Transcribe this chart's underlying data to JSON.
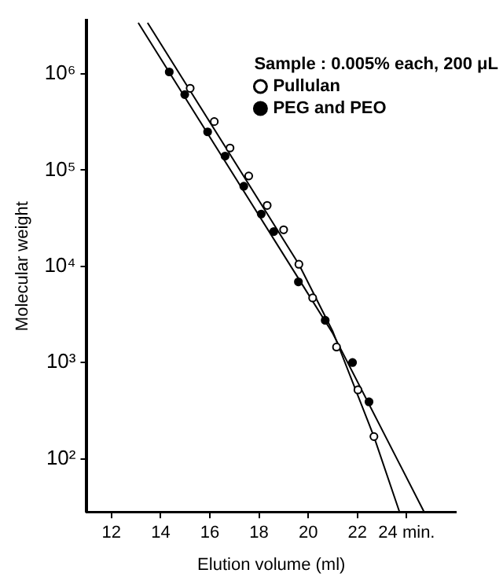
{
  "chart_data": {
    "type": "scatter",
    "xlabel": "Elution volume (ml)",
    "ylabel": "Molecular weight",
    "legend_title": "Sample : 0.005% each, 200 μL",
    "legend": "top right",
    "log": "y",
    "grid": false,
    "xlim": [
      11,
      26
    ],
    "xticks": [
      12,
      14,
      16,
      18,
      20,
      22,
      {
        "value": 24,
        "label": "24 min."
      }
    ],
    "ylim": [
      28,
      3600000
    ],
    "yticks": [
      {
        "value": 100,
        "label": "10²"
      },
      {
        "value": 1000,
        "label": "10³"
      },
      {
        "value": 10000,
        "label": "10⁴"
      },
      {
        "value": 100000,
        "label": "10⁵"
      },
      {
        "value": 1000000,
        "label": "10⁶"
      }
    ],
    "series": [
      {
        "name": "Pullulan",
        "color": "#ffffff",
        "marker": "circle",
        "x": [
          15.2,
          16.18,
          16.82,
          17.58,
          18.33,
          19.0,
          19.62,
          20.18,
          21.15,
          22.02,
          22.67
        ],
        "values": [
          710000,
          320000,
          170000,
          87000,
          43000,
          24000,
          10500,
          4700,
          1450,
          520,
          170
        ]
      },
      {
        "name": "PEG and PEO",
        "color": "#000000",
        "marker": "circle",
        "x": [
          14.35,
          14.98,
          15.91,
          16.62,
          17.38,
          18.09,
          18.6,
          19.6,
          20.69,
          21.8,
          22.47
        ],
        "values": [
          1050000,
          610000,
          250000,
          140000,
          68000,
          35000,
          23000,
          6900,
          2750,
          1000,
          390
        ]
      },
      {
        "type": "line",
        "color": "#000000",
        "marker": "none",
        "x": [
          13.47,
          19.62,
          21.0,
          22.67,
          23.71
        ],
        "values": [
          3400000,
          10500,
          2100,
          170,
          28
        ]
      },
      {
        "type": "line",
        "color": "#000000",
        "marker": "none",
        "x": [
          13.09,
          19.6,
          21.0,
          24.71
        ],
        "values": [
          3400000,
          7500,
          2000,
          28
        ]
      }
    ]
  }
}
